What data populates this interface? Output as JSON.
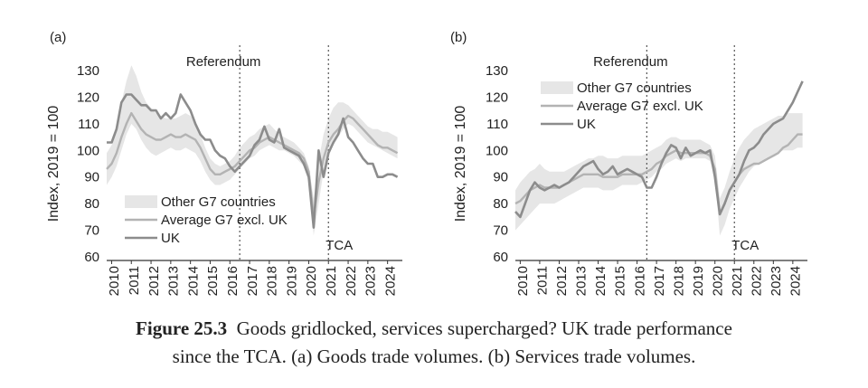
{
  "figure": {
    "caption_label": "Figure 25.3",
    "caption_line1": "Goods gridlocked, services supercharged? UK trade performance",
    "caption_line2": "since the TCA. (a) Goods trade volumes. (b) Services trade volumes."
  },
  "chart_data": [
    {
      "type": "line",
      "panel_label": "(a)",
      "title": "",
      "xlabel": "",
      "ylabel": "Index, 2019 = 100",
      "ylim": [
        60,
        130
      ],
      "yticks": [
        60,
        70,
        80,
        90,
        100,
        110,
        120,
        130
      ],
      "xlim": [
        2009.75,
        2024.75
      ],
      "xticks": [
        "2010",
        "2011",
        "2012",
        "2013",
        "2014",
        "2015",
        "2016",
        "2017",
        "2018",
        "2019",
        "2020",
        "2021",
        "2022",
        "2023",
        "2024"
      ],
      "grid": false,
      "legend_position": "bottom-left",
      "annotations": [
        {
          "text": "Referendum",
          "x": 2016.5
        },
        {
          "text": "TCA",
          "x": 2021.0
        }
      ],
      "x": [
        2009.75,
        2010.0,
        2010.25,
        2010.5,
        2010.75,
        2011.0,
        2011.25,
        2011.5,
        2011.75,
        2012.0,
        2012.25,
        2012.5,
        2012.75,
        2013.0,
        2013.25,
        2013.5,
        2013.75,
        2014.0,
        2014.25,
        2014.5,
        2014.75,
        2015.0,
        2015.25,
        2015.5,
        2015.75,
        2016.0,
        2016.25,
        2016.5,
        2016.75,
        2017.0,
        2017.25,
        2017.5,
        2017.75,
        2018.0,
        2018.25,
        2018.5,
        2018.75,
        2019.0,
        2019.25,
        2019.5,
        2019.75,
        2020.0,
        2020.25,
        2020.5,
        2020.75,
        2021.0,
        2021.25,
        2021.5,
        2021.75,
        2022.0,
        2022.25,
        2022.5,
        2022.75,
        2023.0,
        2023.25,
        2023.5,
        2023.75,
        2024.0,
        2024.25,
        2024.5
      ],
      "series": [
        {
          "name": "Other G7 countries",
          "kind": "band",
          "color": "#e6e6e6",
          "low": [
            87,
            90,
            94,
            100,
            106,
            110,
            108,
            104,
            101,
            99,
            98,
            99,
            100,
            101,
            100,
            100,
            101,
            100,
            99,
            96,
            92,
            89,
            87,
            87,
            88,
            89,
            91,
            93,
            95,
            97,
            98,
            100,
            101,
            102,
            101,
            100,
            100,
            99,
            98,
            96,
            94,
            88,
            68,
            80,
            92,
            98,
            102,
            105,
            108,
            110,
            109,
            107,
            105,
            103,
            102,
            101,
            100,
            99,
            98,
            97
          ],
          "high": [
            99,
            102,
            108,
            118,
            126,
            132,
            128,
            122,
            118,
            116,
            114,
            113,
            112,
            112,
            112,
            113,
            114,
            113,
            111,
            106,
            101,
            97,
            95,
            94,
            95,
            96,
            98,
            101,
            103,
            105,
            106,
            108,
            109,
            110,
            108,
            106,
            105,
            104,
            103,
            101,
            99,
            94,
            82,
            96,
            106,
            112,
            116,
            118,
            118,
            117,
            115,
            113,
            111,
            109,
            108,
            108,
            107,
            107,
            106,
            105
          ]
        },
        {
          "name": "Average G7 excl. UK",
          "kind": "line",
          "color": "#b3b3b3",
          "width": 2.4,
          "values": [
            93,
            95,
            99,
            105,
            110,
            114,
            111,
            108,
            106,
            105,
            104,
            104,
            105,
            106,
            105,
            105,
            106,
            105,
            104,
            101,
            97,
            93,
            91,
            91,
            92,
            93,
            94,
            96,
            98,
            100,
            101,
            103,
            104,
            105,
            104,
            103,
            102,
            101,
            100,
            99,
            97,
            92,
            75,
            88,
            97,
            103,
            106,
            108,
            111,
            113,
            112,
            110,
            108,
            106,
            104,
            102,
            101,
            101,
            100,
            99
          ]
        },
        {
          "name": "UK",
          "kind": "line",
          "color": "#8c8c8c",
          "width": 2.6,
          "values": [
            103,
            103,
            108,
            118,
            121,
            121,
            119,
            117,
            117,
            115,
            115,
            112,
            114,
            112,
            114,
            121,
            118,
            115,
            110,
            106,
            104,
            104,
            100,
            98,
            97,
            94,
            92,
            94,
            96,
            98,
            102,
            104,
            109,
            104,
            103,
            108,
            101,
            100,
            99,
            98,
            95,
            90,
            71,
            100,
            90,
            99,
            103,
            106,
            112,
            105,
            103,
            100,
            97,
            95,
            95,
            90,
            90,
            91,
            91,
            90
          ]
        }
      ]
    },
    {
      "type": "line",
      "panel_label": "(b)",
      "title": "",
      "xlabel": "",
      "ylabel": "Index, 2019 = 100",
      "ylim": [
        60,
        130
      ],
      "yticks": [
        60,
        70,
        80,
        90,
        100,
        110,
        120,
        130
      ],
      "xlim": [
        2009.75,
        2024.75
      ],
      "xticks": [
        "2010",
        "2011",
        "2012",
        "2013",
        "2014",
        "2015",
        "2016",
        "2017",
        "2018",
        "2019",
        "2020",
        "2021",
        "2022",
        "2023",
        "2024"
      ],
      "grid": false,
      "legend_position": "top-left",
      "annotations": [
        {
          "text": "Referendum",
          "x": 2016.5
        },
        {
          "text": "TCA",
          "x": 2021.0
        }
      ],
      "x": [
        2009.75,
        2010.0,
        2010.25,
        2010.5,
        2010.75,
        2011.0,
        2011.25,
        2011.5,
        2011.75,
        2012.0,
        2012.25,
        2012.5,
        2012.75,
        2013.0,
        2013.25,
        2013.5,
        2013.75,
        2014.0,
        2014.25,
        2014.5,
        2014.75,
        2015.0,
        2015.25,
        2015.5,
        2015.75,
        2016.0,
        2016.25,
        2016.5,
        2016.75,
        2017.0,
        2017.25,
        2017.5,
        2017.75,
        2018.0,
        2018.25,
        2018.5,
        2018.75,
        2019.0,
        2019.25,
        2019.5,
        2019.75,
        2020.0,
        2020.25,
        2020.5,
        2020.75,
        2021.0,
        2021.25,
        2021.5,
        2021.75,
        2022.0,
        2022.25,
        2022.5,
        2022.75,
        2023.0,
        2023.25,
        2023.5,
        2023.75,
        2024.0,
        2024.25,
        2024.5
      ],
      "series": [
        {
          "name": "Other G7 countries",
          "kind": "band",
          "color": "#e6e6e6",
          "low": [
            70,
            72,
            74,
            76,
            78,
            80,
            80,
            80,
            80,
            81,
            82,
            83,
            84,
            85,
            86,
            86,
            86,
            86,
            85,
            85,
            85,
            86,
            87,
            87,
            87,
            87,
            88,
            89,
            90,
            92,
            93,
            95,
            96,
            97,
            96,
            97,
            97,
            97,
            97,
            97,
            96,
            90,
            68,
            72,
            78,
            82,
            86,
            89,
            92,
            94,
            95,
            96,
            97,
            98,
            99,
            100,
            100,
            100,
            101,
            101
          ],
          "high": [
            85,
            88,
            90,
            92,
            93,
            95,
            93,
            92,
            92,
            92,
            92,
            93,
            94,
            95,
            96,
            97,
            97,
            98,
            98,
            97,
            97,
            97,
            98,
            98,
            98,
            98,
            98,
            99,
            100,
            101,
            102,
            104,
            105,
            105,
            104,
            104,
            104,
            104,
            104,
            103,
            102,
            98,
            82,
            86,
            92,
            97,
            101,
            104,
            106,
            108,
            109,
            110,
            111,
            112,
            113,
            113,
            114,
            114,
            114,
            114
          ]
        },
        {
          "name": "Average G7 excl. UK",
          "kind": "line",
          "color": "#b3b3b3",
          "width": 2.4,
          "values": [
            80,
            81,
            83,
            85,
            86,
            87,
            86,
            86,
            86,
            86,
            87,
            88,
            89,
            90,
            91,
            91,
            91,
            91,
            90,
            90,
            90,
            90,
            91,
            91,
            91,
            91,
            91,
            92,
            93,
            95,
            96,
            98,
            99,
            100,
            99,
            99,
            99,
            99,
            99,
            99,
            98,
            93,
            76,
            80,
            85,
            88,
            91,
            93,
            94,
            95,
            95,
            96,
            97,
            98,
            99,
            101,
            102,
            104,
            106,
            106
          ]
        },
        {
          "name": "UK",
          "kind": "line",
          "color": "#8c8c8c",
          "width": 2.6,
          "values": [
            77,
            75,
            80,
            85,
            88,
            86,
            85,
            86,
            87,
            86,
            87,
            88,
            90,
            92,
            94,
            95,
            96,
            93,
            91,
            92,
            94,
            91,
            92,
            93,
            92,
            91,
            90,
            86,
            86,
            90,
            95,
            99,
            102,
            101,
            97,
            101,
            98,
            99,
            100,
            99,
            100,
            90,
            76,
            80,
            85,
            88,
            91,
            96,
            100,
            101,
            103,
            106,
            108,
            110,
            111,
            112,
            115,
            118,
            122,
            126
          ]
        }
      ]
    }
  ]
}
